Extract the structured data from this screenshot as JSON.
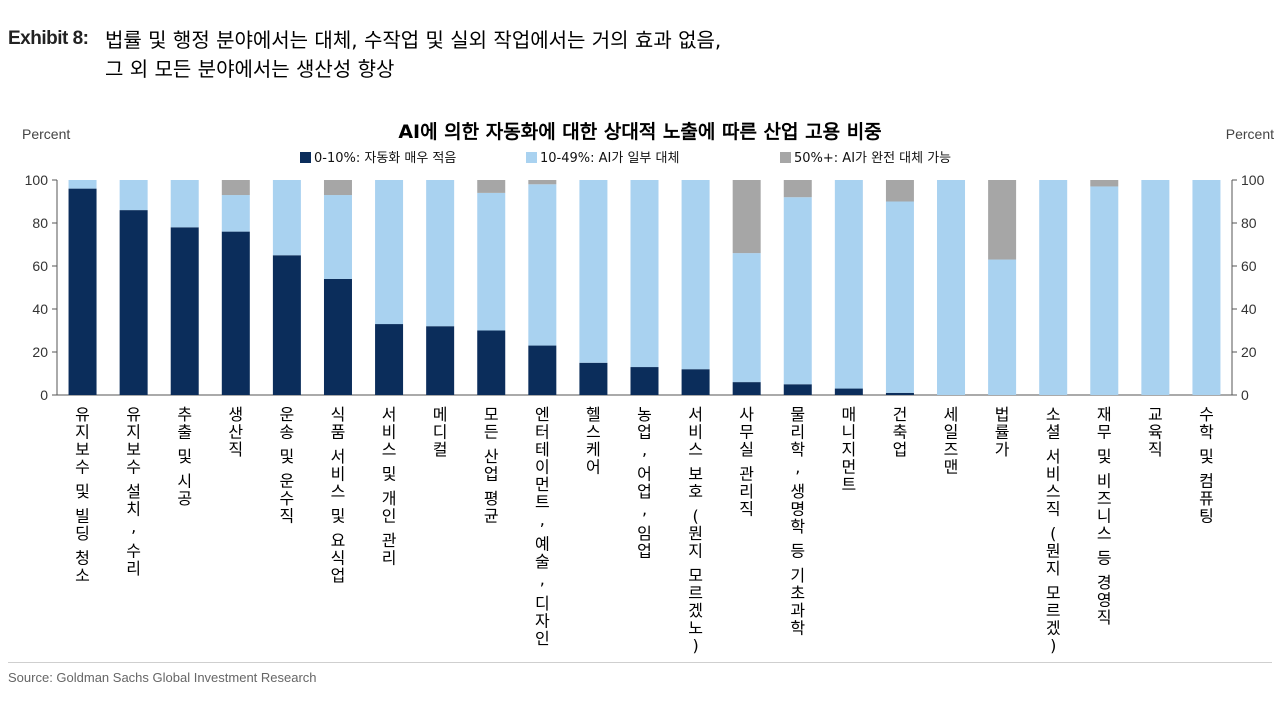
{
  "header": {
    "exhibit": "Exhibit 8:",
    "line1": "법률 및 행정 분야에서는 대체, 수작업 및 실외 작업에서는 거의 효과 없음,",
    "line2": "그 외 모든 분야에서는 생산성 향상"
  },
  "footer": {
    "source": "Source: Goldman Sachs Global Investment Research"
  },
  "chart_data": {
    "type": "bar",
    "stacked": true,
    "title": "AI에 의한 자동화에 대한 상대적 노출에 따른 산업 고용 비중",
    "ylabel_left": "Percent",
    "ylabel_right": "Percent",
    "ylim": [
      0,
      100
    ],
    "yticks": [
      "0",
      "20",
      "40",
      "60",
      "80",
      "100"
    ],
    "legend_position": "top",
    "colors": {
      "low": "#0b2d5b",
      "mid": "#a9d2f0",
      "high": "#a6a6a6"
    },
    "legend": [
      {
        "key": "low",
        "label": "0-10%:",
        "desc": "자동화 매우 적음"
      },
      {
        "key": "mid",
        "label": "10-49%:",
        "desc": "AI가 일부 대체"
      },
      {
        "key": "high",
        "label": "50%+:",
        "desc": "AI가 완전 대체 가능"
      }
    ],
    "categories": [
      "유지보수 및 빌딩 청소",
      "유지보수 설치, 수리",
      "추출 및 시공",
      "생산직",
      "운송 및 운수직",
      "식품 서비스 및 요식업",
      "서비스 및 개인 관리",
      "메디컬",
      "모든 산업 평균",
      "엔터테이먼트, 예술, 디자인",
      "헬스케어",
      "농업, 어업, 임업",
      "서비스 보호 (뭔지 모르겠노)",
      "사무실 관리직",
      "물리학, 생명학 등 기초과학",
      "매니지먼트",
      "건축업",
      "세일즈맨",
      "법률가",
      "소셜 서비스직 (뭔지 모르겠)",
      "재무 및 비즈니스 등 경영직",
      "교육직",
      "수학 및 컴퓨팅"
    ],
    "series": [
      {
        "name": "0-10%",
        "key": "low",
        "values": [
          96,
          86,
          78,
          76,
          65,
          54,
          33,
          32,
          30,
          23,
          15,
          13,
          12,
          6,
          5,
          3,
          1,
          0,
          0,
          0,
          0,
          0,
          0
        ]
      },
      {
        "name": "10-49%",
        "key": "mid",
        "values": [
          4,
          14,
          22,
          17,
          35,
          39,
          67,
          68,
          64,
          75,
          85,
          87,
          88,
          60,
          87,
          97,
          89,
          100,
          63,
          100,
          97,
          100,
          100
        ]
      },
      {
        "name": "50%+",
        "key": "high",
        "values": [
          0,
          0,
          0,
          7,
          0,
          7,
          0,
          0,
          6,
          2,
          0,
          0,
          0,
          34,
          8,
          0,
          10,
          0,
          37,
          0,
          3,
          0,
          0
        ]
      }
    ]
  }
}
